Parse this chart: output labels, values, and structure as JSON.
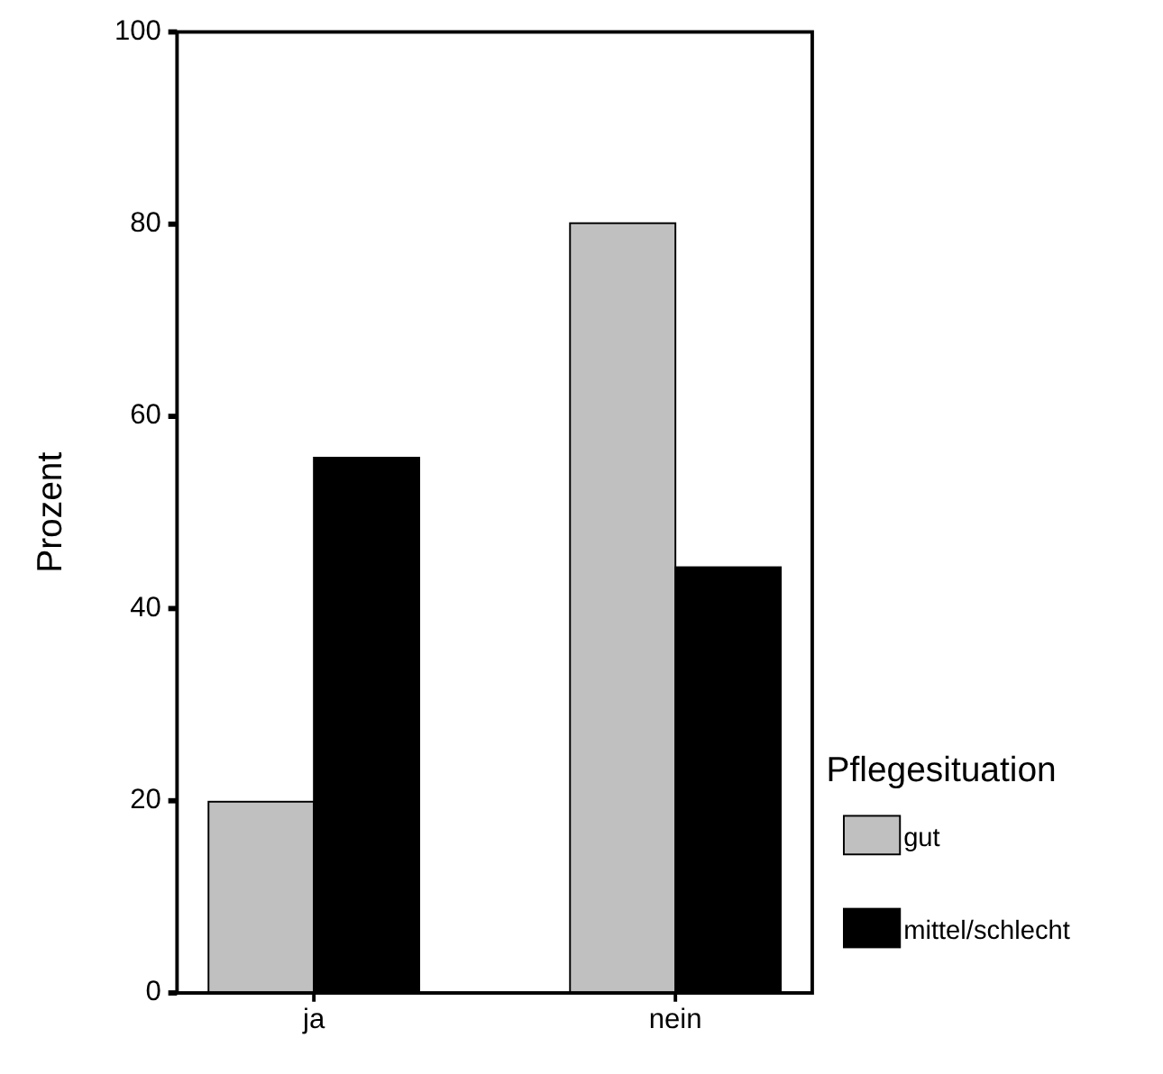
{
  "chart_data": {
    "type": "bar",
    "ylabel": "Prozent",
    "legend_title": "Pflegesituation",
    "legend": "right",
    "grid": false,
    "categories": [
      "ja",
      "nein"
    ],
    "series": [
      {
        "name": "gut",
        "color": "#c0c0c0",
        "values": [
          19.9,
          80.1
        ]
      },
      {
        "name": "mittel/schlecht",
        "color": "#000000",
        "values": [
          55.7,
          44.3
        ]
      }
    ],
    "ylim": [
      0,
      100
    ],
    "yticks": [
      0,
      20,
      40,
      60,
      80,
      100
    ]
  }
}
